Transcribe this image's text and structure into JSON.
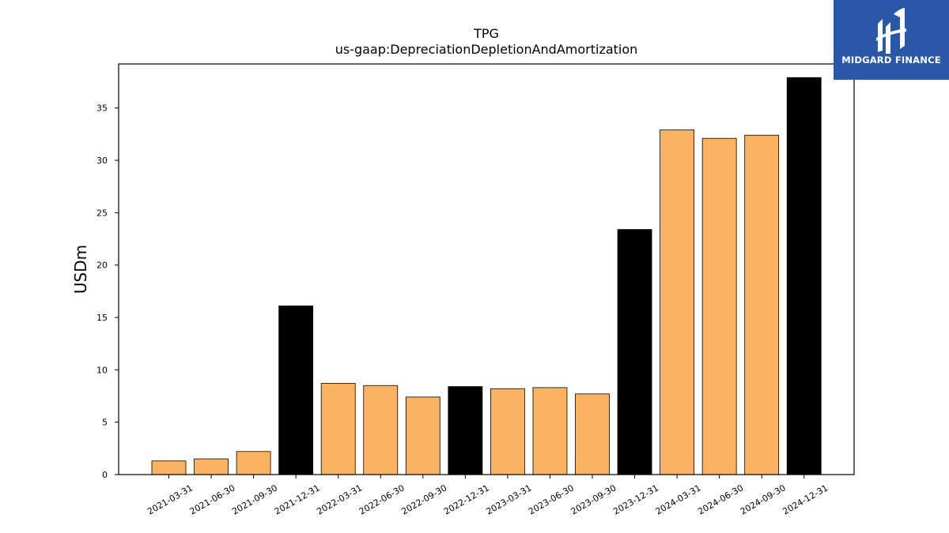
{
  "chart_data": {
    "type": "bar",
    "title": "TPG",
    "subtitle": "us-gaap:DepreciationDepletionAndAmortization",
    "xlabel": "",
    "ylabel": "USDm",
    "ylim": [
      0,
      39.2
    ],
    "yticks": [
      0,
      5,
      10,
      15,
      20,
      25,
      30,
      35
    ],
    "categories": [
      "2021-03-31",
      "2021-06-30",
      "2021-09-30",
      "2021-12-31",
      "2022-03-31",
      "2022-06-30",
      "2022-09-30",
      "2022-12-31",
      "2023-03-31",
      "2023-06-30",
      "2023-09-30",
      "2023-12-31",
      "2024-03-31",
      "2024-06-30",
      "2024-09-30",
      "2024-12-31"
    ],
    "values": [
      1.3,
      1.5,
      2.2,
      16.1,
      8.7,
      8.5,
      7.4,
      8.4,
      8.2,
      8.3,
      7.7,
      23.4,
      32.9,
      32.1,
      32.4,
      37.9
    ],
    "bar_colors": [
      "#fbb362",
      "#fbb362",
      "#fbb362",
      "#000000",
      "#fbb362",
      "#fbb362",
      "#fbb362",
      "#000000",
      "#fbb362",
      "#fbb362",
      "#fbb362",
      "#000000",
      "#fbb362",
      "#fbb362",
      "#fbb362",
      "#000000"
    ],
    "grid": false,
    "legend": "none"
  },
  "logo": {
    "text": "MIDGARD FINANCE",
    "icon": "midgard-logo-icon",
    "background": "#2a57a8"
  }
}
